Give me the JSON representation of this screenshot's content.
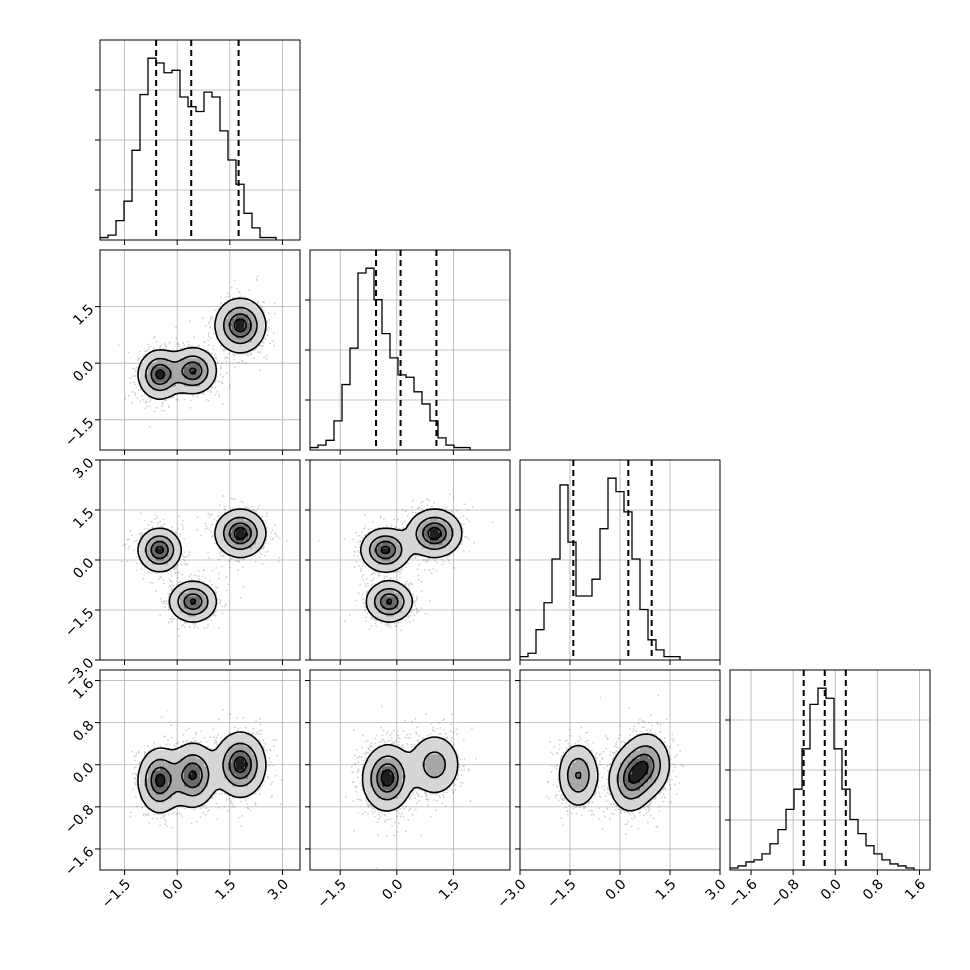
{
  "chart_data": {
    "type": "corner",
    "title": "",
    "parameters": [
      "",
      "",
      "",
      ""
    ],
    "dims": [
      {
        "range": [
          -2.2,
          3.5
        ],
        "ticks": [
          -1.5,
          0.0,
          1.5,
          3.0
        ],
        "tick_labels": [
          "−1.5",
          "0.0",
          "1.5",
          "3.0"
        ],
        "quantiles": [
          -0.6,
          0.4,
          1.75
        ]
      },
      {
        "range": [
          -2.3,
          3.0
        ],
        "ticks": [
          -1.5,
          0.0,
          1.5
        ],
        "tick_labels": [
          "−1.5",
          "0.0",
          "1.5"
        ],
        "quantiles": [
          -0.55,
          0.1,
          1.05
        ]
      },
      {
        "range": [
          -3.0,
          3.0
        ],
        "ticks": [
          -3.0,
          -1.5,
          0.0,
          1.5,
          3.0
        ],
        "tick_labels": [
          "−3.0",
          "−1.5",
          "0.0",
          "1.5",
          "3.0"
        ],
        "quantiles": [
          -1.4,
          0.25,
          0.95
        ]
      },
      {
        "range": [
          -2.0,
          1.8
        ],
        "ticks": [
          -1.6,
          -0.8,
          0.0,
          0.8,
          1.6
        ],
        "tick_labels": [
          "−1.6",
          "−0.8",
          "0.0",
          "0.8",
          "1.6"
        ],
        "quantiles": [
          -0.6,
          -0.2,
          0.2
        ]
      }
    ],
    "histograms": [
      {
        "start": -2.2,
        "step": 0.228,
        "counts": [
          1,
          2,
          8,
          16,
          37,
          60,
          75,
          73,
          69,
          70,
          59,
          55,
          53,
          61,
          59,
          45,
          33,
          23,
          11,
          5,
          1,
          1
        ]
      },
      {
        "start": -2.3,
        "step": 0.212,
        "counts": [
          1,
          2,
          4,
          12,
          27,
          42,
          73,
          75,
          62,
          48,
          38,
          31,
          30,
          24,
          19,
          12,
          5,
          2,
          1,
          1
        ]
      },
      {
        "start": -3.0,
        "step": 0.24,
        "counts": [
          1,
          2,
          9,
          17,
          30,
          52,
          35,
          19,
          19,
          24,
          39,
          54,
          50,
          44,
          30,
          15,
          6,
          3,
          1,
          1
        ]
      },
      {
        "start": -2.0,
        "step": 0.152,
        "counts": [
          1,
          2,
          4,
          5,
          8,
          13,
          20,
          30,
          40,
          60,
          82,
          90,
          85,
          60,
          40,
          25,
          18,
          12,
          8,
          5,
          3,
          2,
          1
        ]
      }
    ],
    "components": [
      {
        "w": 0.33,
        "mu": [
          -0.5,
          -0.3,
          0.3,
          -0.3
        ],
        "sd": [
          0.3,
          0.32,
          0.32,
          0.3
        ]
      },
      {
        "w": 0.32,
        "mu": [
          0.45,
          -0.2,
          -1.25,
          -0.2
        ],
        "sd": [
          0.33,
          0.3,
          0.3,
          0.3
        ]
      },
      {
        "w": 0.35,
        "mu": [
          1.8,
          1.0,
          0.8,
          0.0
        ],
        "sd": [
          0.35,
          0.35,
          0.35,
          0.3
        ]
      }
    ],
    "density_levels": [
      0.12,
      0.4,
      0.68,
      0.88
    ],
    "grid": true
  }
}
